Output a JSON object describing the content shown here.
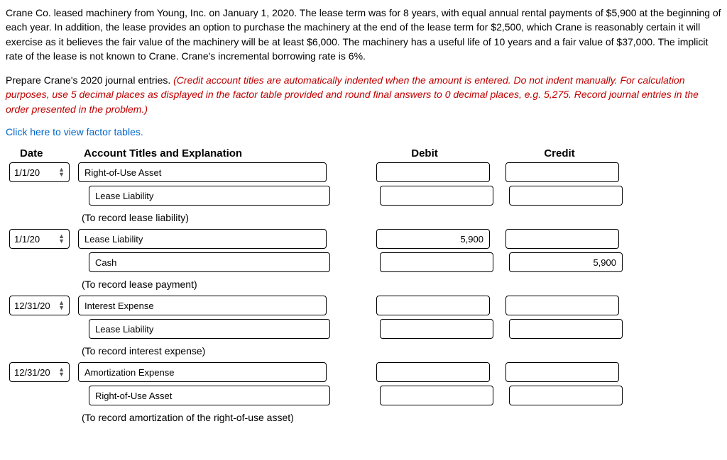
{
  "problem": {
    "paragraph1": "Crane Co. leased machinery from Young, Inc. on January 1, 2020. The lease term was for 8 years, with equal annual rental payments of $5,900 at the beginning of each year. In addition, the lease provides an option to purchase the machinery at the end of the lease term for $2,500, which Crane is reasonably certain it will exercise as it believes the fair value of the machinery will be at least $6,000. The machinery has a useful life of 10 years and a fair value of $37,000. The implicit rate of the lease is not known to Crane. Crane's incremental borrowing rate is 6%.",
    "paragraph2_lead": "Prepare Crane's 2020 journal entries. ",
    "paragraph2_red": "(Credit account titles are automatically indented when the amount is entered. Do not indent manually. For calculation purposes, use 5 decimal places as displayed in the factor table provided and round final answers to 0 decimal places, e.g. 5,275. Record journal entries in the order presented in the problem.)",
    "link_text": "Click here to view factor tables."
  },
  "headers": {
    "date": "Date",
    "account": "Account Titles and Explanation",
    "debit": "Debit",
    "credit": "Credit"
  },
  "entries": [
    {
      "date": "1/1/20",
      "lines": [
        {
          "account": "Right-of-Use Asset",
          "debit": "",
          "credit": "",
          "indent": false
        },
        {
          "account": "Lease Liability",
          "debit": "",
          "credit": "",
          "indent": true
        }
      ],
      "caption": "(To record lease liability)"
    },
    {
      "date": "1/1/20",
      "lines": [
        {
          "account": "Lease Liability",
          "debit": "5,900",
          "credit": "",
          "indent": false
        },
        {
          "account": "Cash",
          "debit": "",
          "credit": "5,900",
          "indent": true
        }
      ],
      "caption": "(To record lease payment)"
    },
    {
      "date": "12/31/20",
      "lines": [
        {
          "account": "Interest Expense",
          "debit": "",
          "credit": "",
          "indent": false
        },
        {
          "account": "Lease Liability",
          "debit": "",
          "credit": "",
          "indent": true
        }
      ],
      "caption": "(To record interest expense)"
    },
    {
      "date": "12/31/20",
      "lines": [
        {
          "account": "Amortization Expense",
          "debit": "",
          "credit": "",
          "indent": false
        },
        {
          "account": "Right-of-Use Asset",
          "debit": "",
          "credit": "",
          "indent": true
        }
      ],
      "caption": "(To record amortization of the right-of-use asset)"
    }
  ]
}
